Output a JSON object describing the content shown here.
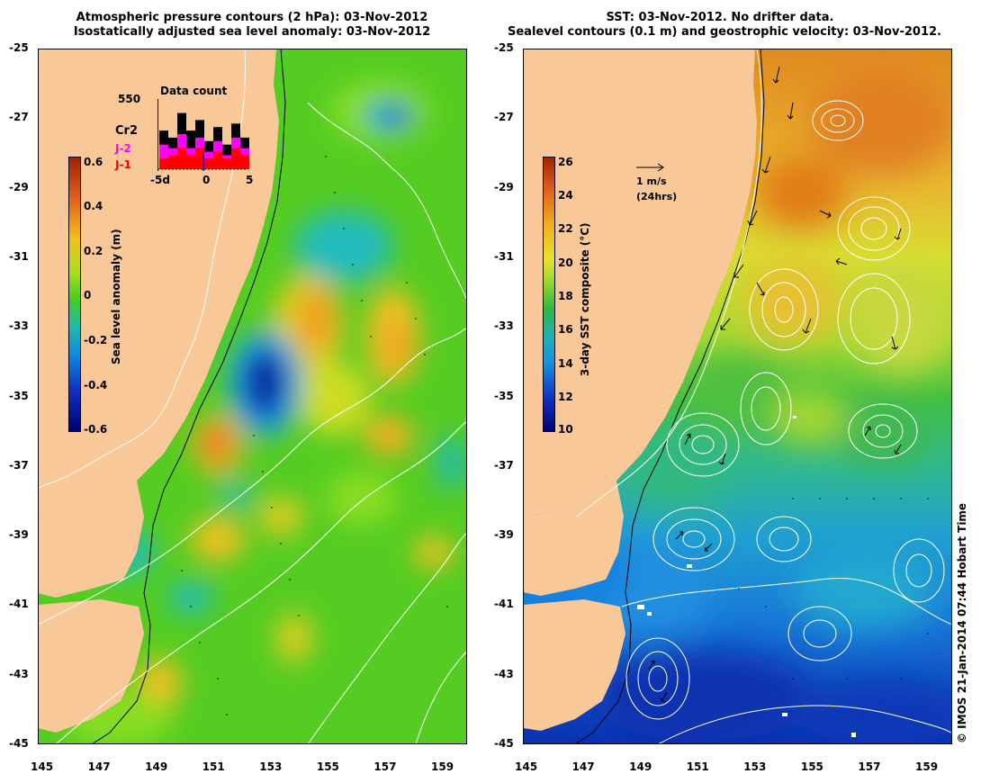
{
  "left_panel": {
    "title_line1": "Atmospheric pressure contours (2 hPa): 03-Nov-2012",
    "title_line2": "Isostatically adjusted sea level anomaly: 03-Nov-2012",
    "colorbar": {
      "label": "Sea level anomaly (m)",
      "ticks": [
        "0.6",
        "0.4",
        "0.2",
        "0",
        "-0.2",
        "-0.4",
        "-0.6"
      ]
    },
    "inset": {
      "title": "Data count",
      "number": "550",
      "partial_labels": [
        "Cr2",
        "J-2",
        "J-1"
      ],
      "partial_label_colors": [
        "#000000",
        "#ff00ff",
        "#ff0000"
      ],
      "x_ticks": [
        "-5d",
        "0",
        "5"
      ],
      "bars_total": [
        0.55,
        0.45,
        0.8,
        0.55,
        0.7,
        0.4,
        0.6,
        0.35,
        0.65,
        0.45
      ],
      "bars_j2": [
        0.35,
        0.3,
        0.5,
        0.3,
        0.45,
        0.25,
        0.4,
        0.2,
        0.45,
        0.3
      ],
      "bars_j1": [
        0.15,
        0.2,
        0.3,
        0.2,
        0.3,
        0.15,
        0.25,
        0.15,
        0.3,
        0.2
      ]
    }
  },
  "right_panel": {
    "title_line1": "SST: 03-Nov-2012. No drifter data.",
    "title_line2": "Sealevel contours (0.1 m) and geostrophic velocity: 03-Nov-2012.",
    "colorbar": {
      "label": "3-day SST composite (°C)",
      "ticks": [
        "26",
        "24",
        "22",
        "20",
        "18",
        "16",
        "14",
        "12",
        "10"
      ]
    },
    "velocity_scale": {
      "label": "1 m/s",
      "sublabel": "(24hrs)"
    }
  },
  "y_ticks": [
    "-25",
    "-27",
    "-29",
    "-31",
    "-33",
    "-35",
    "-37",
    "-39",
    "-41",
    "-43",
    "-45"
  ],
  "x_ticks": [
    "145",
    "147",
    "149",
    "151",
    "153",
    "155",
    "157",
    "159"
  ],
  "copyright": "© IMOS 21-Jan-2014 07:44 Hobart Time",
  "colors": {
    "land": "#f8c898",
    "ocean_green": "#55cc22",
    "sla_low": "#000080",
    "sla_high": "#a02000",
    "sst_warm": "#e08a20",
    "sst_cold": "#0a30b0"
  }
}
